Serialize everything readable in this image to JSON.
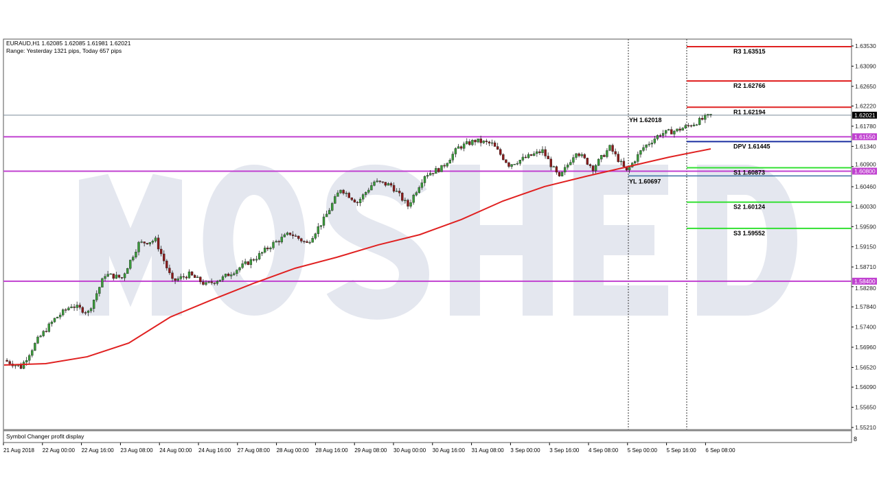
{
  "chart_data": {
    "type": "candlestick",
    "symbol_line": "EURAUD,H1  1.62085 1.62085 1.61981 1.62021",
    "range_line": "Range: Yesterday 1321 pips, Today 657 pips",
    "ylim": [
      1.5521,
      1.6353
    ],
    "y_ticks": [
      "1.63530",
      "1.63090",
      "1.62650",
      "1.62220",
      "1.61780",
      "1.61340",
      "1.60900",
      "1.60460",
      "1.60030",
      "1.59590",
      "1.59150",
      "1.58710",
      "1.58280",
      "1.57840",
      "1.57400",
      "1.56960",
      "1.56520",
      "1.56090",
      "1.55650",
      "1.55210"
    ],
    "x_ticks": [
      "21 Aug 2018",
      "22 Aug 00:00",
      "22 Aug 16:00",
      "23 Aug 08:00",
      "24 Aug 00:00",
      "24 Aug 16:00",
      "27 Aug 08:00",
      "28 Aug 00:00",
      "28 Aug 16:00",
      "29 Aug 08:00",
      "30 Aug 00:00",
      "30 Aug 16:00",
      "31 Aug 08:00",
      "3 Sep 00:00",
      "3 Sep 16:00",
      "4 Sep 08:00",
      "5 Sep 00:00",
      "5 Sep 16:00",
      "6 Sep 08:00"
    ],
    "closes": [
      1.56677,
      1.56527,
      1.57126,
      1.57574,
      1.57874,
      1.57724,
      1.58547,
      1.58472,
      1.59221,
      1.59295,
      1.58398,
      1.58547,
      1.58323,
      1.58472,
      1.58697,
      1.58921,
      1.59221,
      1.59445,
      1.59221,
      1.59744,
      1.60418,
      1.60118,
      1.60567,
      1.60492,
      1.60044,
      1.60717,
      1.60867,
      1.61315,
      1.61465,
      1.6139,
      1.60941,
      1.61091,
      1.61241,
      1.60642,
      1.61241,
      1.60867,
      1.61315,
      1.60792,
      1.61315,
      1.61615,
      1.6169,
      1.61839,
      1.62021
    ],
    "moving_average": [
      1.56572,
      1.56602,
      1.56752,
      1.57051,
      1.57619,
      1.57994,
      1.58353,
      1.58682,
      1.58921,
      1.59191,
      1.59415,
      1.59745,
      1.60148,
      1.60463,
      1.60687,
      1.60896,
      1.61106,
      1.61286
    ],
    "current_price": "1.62021",
    "horizontal_levels": [
      {
        "label": "1.61550",
        "price": 1.6155,
        "color": "#c040d0"
      },
      {
        "label": "1.60800",
        "price": 1.608,
        "color": "#c040d0"
      },
      {
        "label": "1.58400",
        "price": 1.584,
        "color": "#c040d0"
      }
    ],
    "pivots": [
      {
        "label": "R3 1.63515",
        "price": 1.63515,
        "color": "#e02020"
      },
      {
        "label": "R2 1.62766",
        "price": 1.62766,
        "color": "#e02020"
      },
      {
        "label": "R1 1.62194",
        "price": 1.62194,
        "color": "#e02020"
      },
      {
        "label": "DPV 1.61445",
        "price": 1.61445,
        "color": "#1a2fa0"
      },
      {
        "label": "S1 1.60873",
        "price": 1.60873,
        "color": "#30e030"
      },
      {
        "label": "S2 1.60124",
        "price": 1.60124,
        "color": "#30e030"
      },
      {
        "label": "S3 1.59552",
        "price": 1.59552,
        "color": "#30e030"
      }
    ],
    "yesterday_high": {
      "label": "YH 1.62018",
      "price": 1.62018
    },
    "yesterday_low": {
      "label": "YL 1.60697",
      "price": 1.60697
    },
    "colors": {
      "bull": "#3a9a3a",
      "bear": "#8b1a1a",
      "ma": "#e02020",
      "grid": "#a0a0a0"
    }
  },
  "watermark": "MOSHED",
  "subpanel": {
    "label": "Symbol Changer profit display",
    "axis_value": "8"
  }
}
